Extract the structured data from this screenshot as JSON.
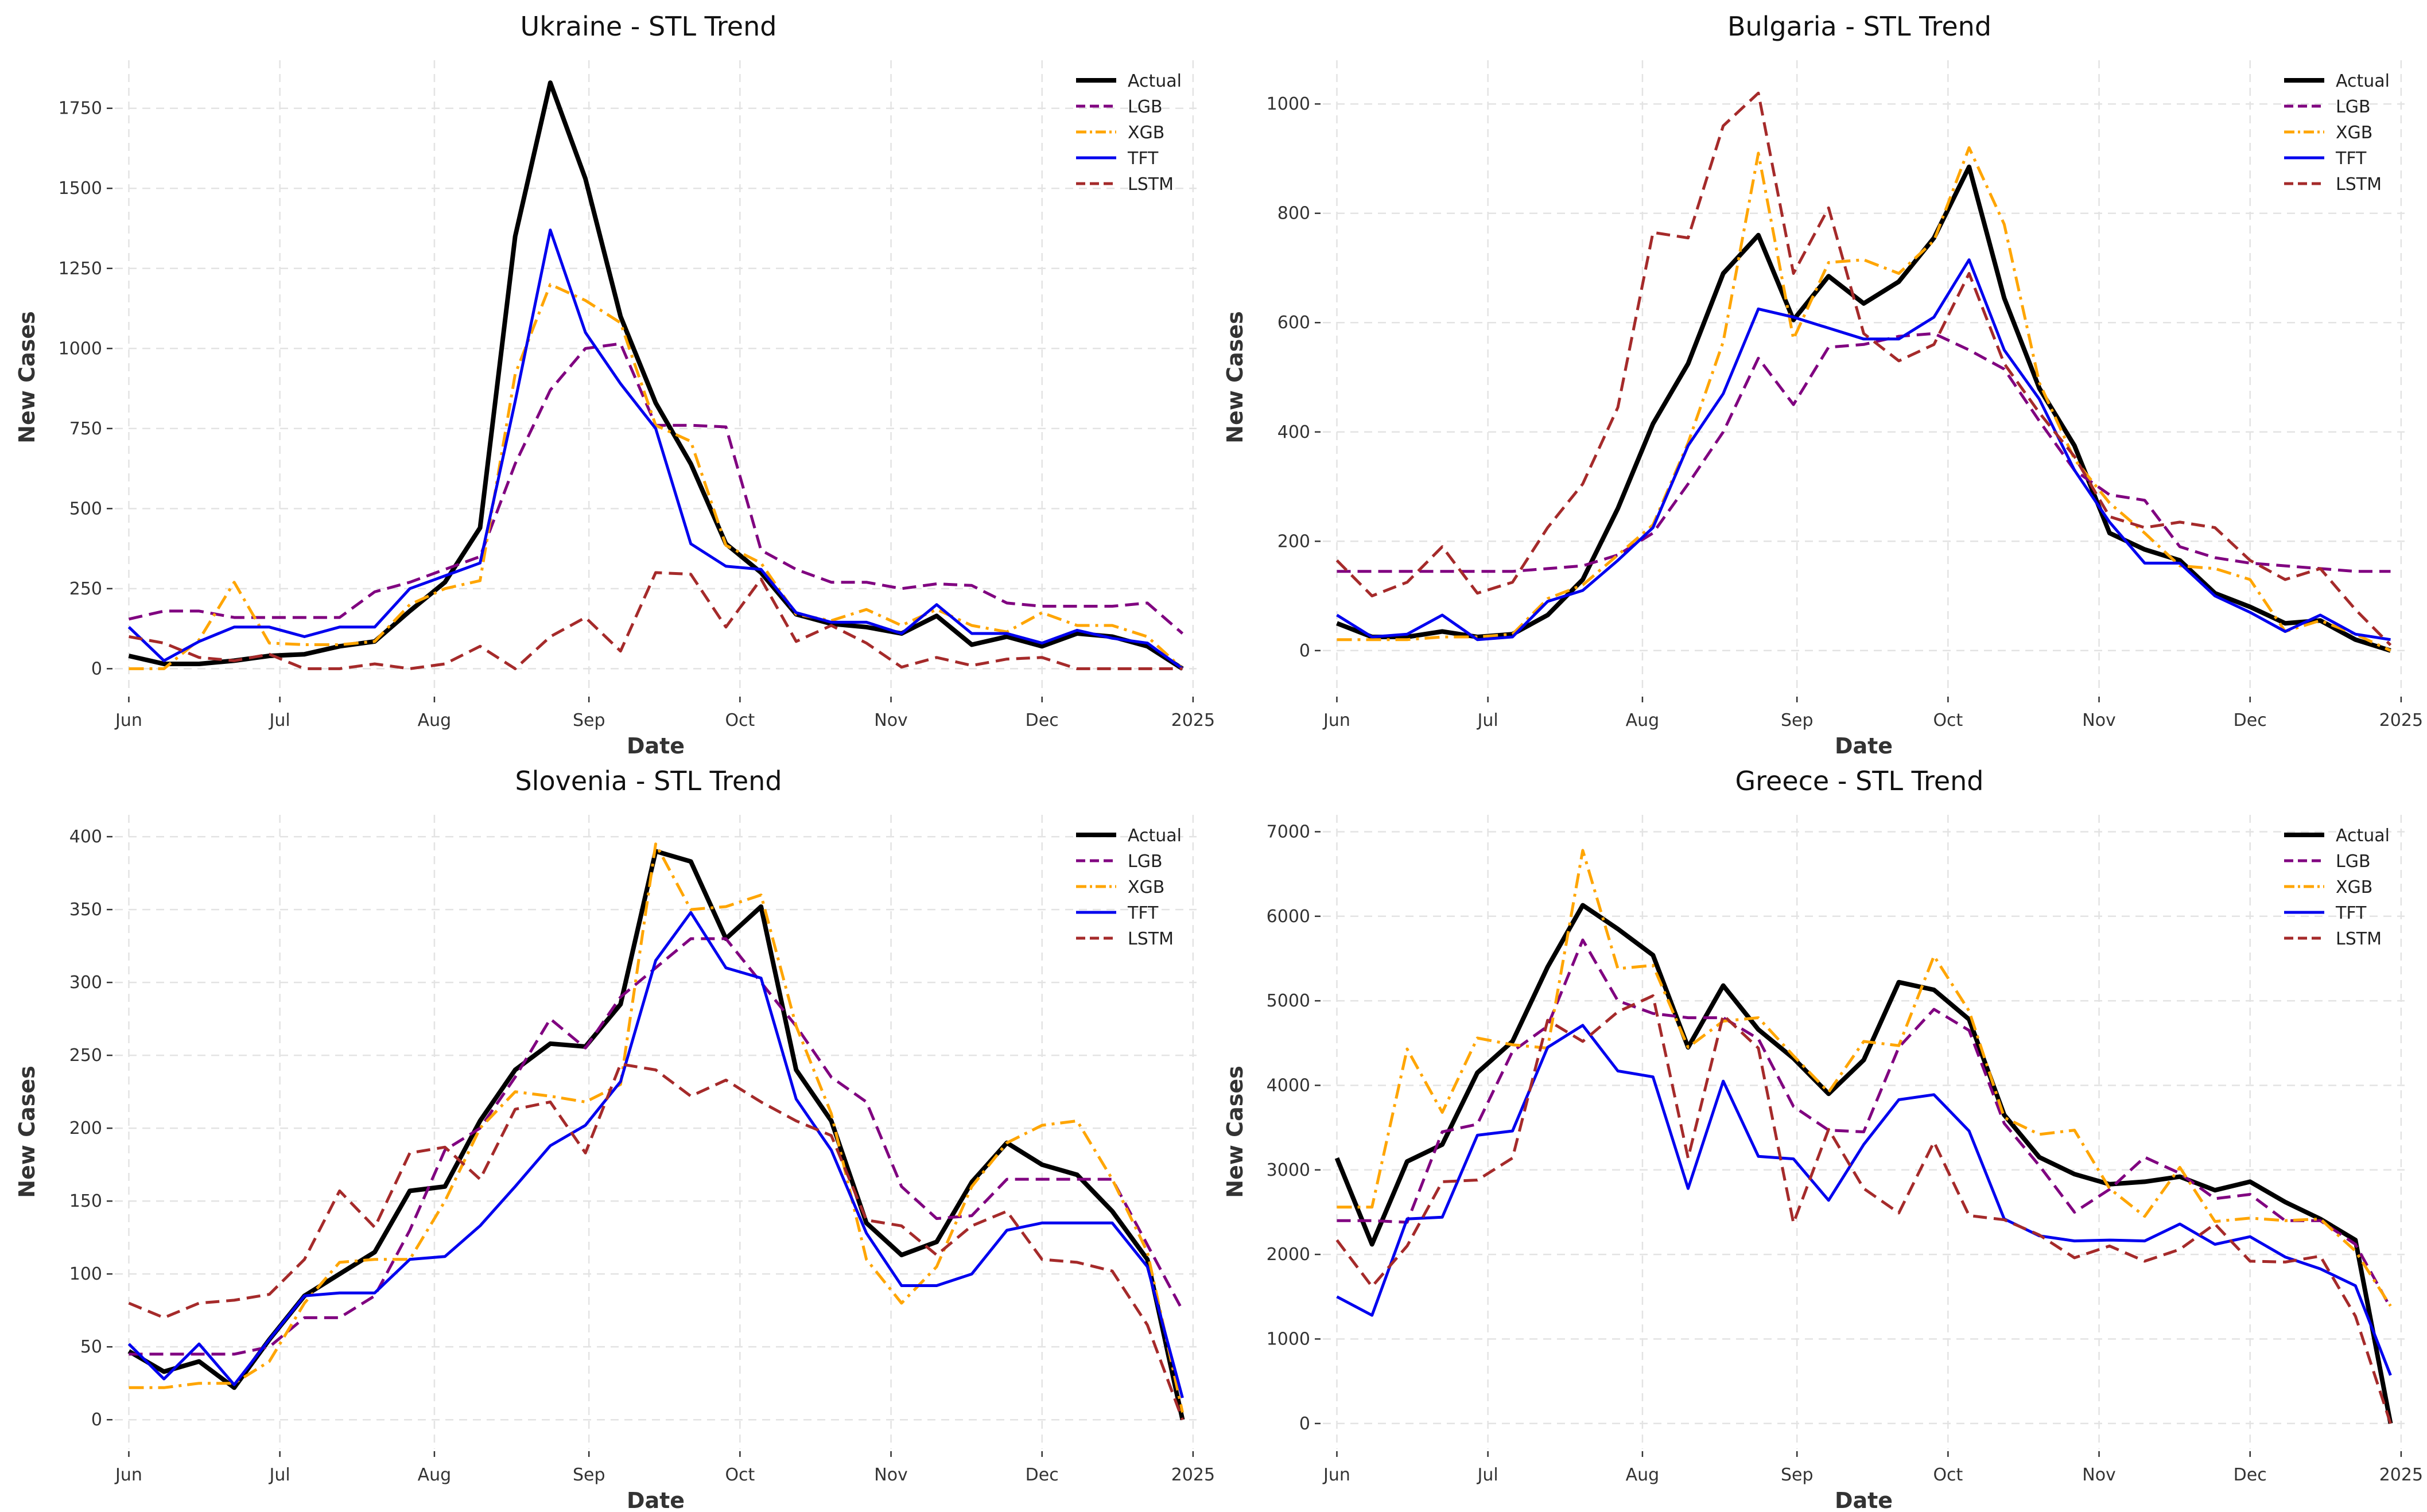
{
  "colors": {
    "Actual": "#000000",
    "LGB": "#800080",
    "XGB": "#FFA500",
    "TFT": "#0000EE",
    "LSTM": "#A52A2A"
  },
  "chart_data": [
    {
      "type": "line",
      "title": "Ukraine - STL Trend",
      "xlabel": "Date",
      "ylabel": "New Cases",
      "ylim": [
        -80,
        1900
      ],
      "yticks": [
        0,
        250,
        500,
        750,
        1000,
        1250,
        1500,
        1750
      ],
      "ytick_labels": [
        "0",
        "250",
        "500",
        "750",
        "1000",
        "1250",
        "1500",
        "1750"
      ],
      "xlim": [
        -0.4,
        30.4
      ],
      "xtick_pos": [
        0,
        4.3,
        8.7,
        13.1,
        17.4,
        21.7,
        26,
        30.3
      ],
      "xtick_labels": [
        "Jun",
        "Jul",
        "Aug",
        "Sep",
        "Oct",
        "Nov",
        "Dec",
        "2025"
      ],
      "grid": true,
      "legend": "top-right",
      "series": [
        {
          "name": "Actual",
          "style": "solid",
          "width": 8,
          "values": [
            40,
            15,
            15,
            25,
            40,
            45,
            70,
            85,
            180,
            270,
            440,
            1350,
            1830,
            1530,
            1100,
            830,
            640,
            390,
            300,
            170,
            140,
            130,
            110,
            165,
            75,
            100,
            70,
            110,
            100,
            70,
            0
          ]
        },
        {
          "name": "LGB",
          "style": "dashed",
          "width": 5,
          "values": [
            155,
            180,
            180,
            160,
            160,
            160,
            160,
            240,
            270,
            310,
            350,
            640,
            870,
            1000,
            1015,
            760,
            760,
            755,
            370,
            310,
            270,
            270,
            250,
            265,
            260,
            205,
            195,
            195,
            195,
            205,
            110
          ]
        },
        {
          "name": "XGB",
          "style": "dashdot",
          "width": 5,
          "values": [
            0,
            0,
            90,
            270,
            80,
            75,
            75,
            85,
            200,
            250,
            275,
            920,
            1200,
            1150,
            1080,
            760,
            710,
            385,
            330,
            170,
            150,
            185,
            135,
            185,
            135,
            115,
            175,
            135,
            135,
            100,
            0
          ]
        },
        {
          "name": "TFT",
          "style": "solid",
          "width": 5,
          "values": [
            130,
            25,
            85,
            130,
            130,
            100,
            130,
            130,
            250,
            290,
            330,
            835,
            1370,
            1050,
            890,
            750,
            390,
            320,
            310,
            175,
            145,
            145,
            110,
            200,
            110,
            110,
            80,
            120,
            95,
            80,
            0
          ]
        },
        {
          "name": "LSTM",
          "style": "dashed",
          "width": 5,
          "values": [
            100,
            80,
            35,
            25,
            45,
            0,
            0,
            15,
            0,
            15,
            70,
            0,
            100,
            160,
            55,
            300,
            295,
            130,
            280,
            85,
            135,
            80,
            5,
            35,
            10,
            30,
            35,
            0,
            0,
            0,
            0
          ]
        }
      ]
    },
    {
      "type": "line",
      "title": "Bulgaria - STL Trend",
      "xlabel": "Date",
      "ylabel": "New Cases",
      "ylim": [
        -80,
        1080
      ],
      "yticks": [
        0,
        200,
        400,
        600,
        800,
        1000
      ],
      "ytick_labels": [
        "0",
        "200",
        "400",
        "600",
        "800",
        "1000"
      ],
      "xlim": [
        -0.4,
        30.4
      ],
      "xtick_pos": [
        0,
        4.3,
        8.7,
        13.1,
        17.4,
        21.7,
        26,
        30.3
      ],
      "xtick_labels": [
        "Jun",
        "Jul",
        "Aug",
        "Sep",
        "Oct",
        "Nov",
        "Dec",
        "2025"
      ],
      "grid": true,
      "legend": "top-right",
      "series": [
        {
          "name": "Actual",
          "style": "solid",
          "width": 8,
          "values": [
            50,
            25,
            25,
            35,
            25,
            30,
            65,
            130,
            260,
            415,
            525,
            690,
            760,
            605,
            685,
            635,
            675,
            755,
            885,
            645,
            480,
            375,
            215,
            185,
            165,
            105,
            80,
            50,
            55,
            20,
            0
          ]
        },
        {
          "name": "LGB",
          "style": "dashed",
          "width": 5,
          "values": [
            145,
            145,
            145,
            145,
            145,
            145,
            150,
            155,
            175,
            215,
            305,
            400,
            535,
            450,
            555,
            560,
            575,
            580,
            550,
            515,
            420,
            330,
            285,
            275,
            190,
            170,
            160,
            155,
            150,
            145,
            145
          ]
        },
        {
          "name": "XGB",
          "style": "dashdot",
          "width": 5,
          "values": [
            20,
            20,
            20,
            25,
            25,
            30,
            95,
            120,
            175,
            230,
            380,
            565,
            910,
            570,
            710,
            715,
            690,
            750,
            920,
            780,
            490,
            350,
            270,
            215,
            155,
            150,
            130,
            35,
            55,
            30,
            0
          ]
        },
        {
          "name": "TFT",
          "style": "solid",
          "width": 5,
          "values": [
            65,
            25,
            30,
            65,
            20,
            25,
            90,
            110,
            165,
            225,
            375,
            470,
            625,
            610,
            590,
            570,
            570,
            610,
            715,
            550,
            460,
            330,
            235,
            160,
            160,
            100,
            70,
            35,
            65,
            30,
            20
          ]
        },
        {
          "name": "LSTM",
          "style": "dashed",
          "width": 5,
          "values": [
            165,
            100,
            125,
            190,
            105,
            125,
            225,
            305,
            445,
            765,
            755,
            960,
            1020,
            690,
            810,
            580,
            530,
            560,
            690,
            525,
            435,
            355,
            245,
            225,
            235,
            225,
            165,
            130,
            150,
            75,
            10
          ]
        }
      ]
    },
    {
      "type": "line",
      "title": "Slovenia - STL Trend",
      "xlabel": "Date",
      "ylabel": "New Cases",
      "ylim": [
        -20,
        415
      ],
      "yticks": [
        0,
        50,
        100,
        150,
        200,
        250,
        300,
        350,
        400
      ],
      "ytick_labels": [
        "0",
        "50",
        "100",
        "150",
        "200",
        "250",
        "300",
        "350",
        "400"
      ],
      "xlim": [
        -0.4,
        30.4
      ],
      "xtick_pos": [
        0,
        4.3,
        8.7,
        13.1,
        17.4,
        21.7,
        26,
        30.3
      ],
      "xtick_labels": [
        "Jun",
        "Jul",
        "Aug",
        "Sep",
        "Oct",
        "Nov",
        "Dec",
        "2025"
      ],
      "grid": true,
      "legend": "top-right",
      "series": [
        {
          "name": "Actual",
          "style": "solid",
          "width": 8,
          "values": [
            47,
            33,
            40,
            22,
            55,
            85,
            100,
            115,
            157,
            160,
            205,
            240,
            258,
            256,
            285,
            390,
            383,
            330,
            352,
            240,
            205,
            135,
            113,
            122,
            163,
            190,
            175,
            168,
            143,
            110,
            0
          ]
        },
        {
          "name": "LGB",
          "style": "dashed",
          "width": 5,
          "values": [
            45,
            45,
            45,
            45,
            50,
            70,
            70,
            85,
            130,
            185,
            200,
            235,
            275,
            255,
            290,
            310,
            330,
            330,
            300,
            270,
            235,
            218,
            160,
            138,
            140,
            165,
            165,
            165,
            165,
            120,
            75
          ]
        },
        {
          "name": "XGB",
          "style": "dashdot",
          "width": 5,
          "values": [
            22,
            22,
            25,
            25,
            40,
            80,
            108,
            110,
            110,
            150,
            200,
            225,
            222,
            218,
            230,
            395,
            350,
            352,
            360,
            270,
            210,
            110,
            80,
            105,
            160,
            190,
            202,
            205,
            165,
            115,
            5
          ]
        },
        {
          "name": "TFT",
          "style": "solid",
          "width": 5,
          "values": [
            52,
            28,
            52,
            24,
            55,
            85,
            87,
            87,
            110,
            112,
            133,
            160,
            188,
            202,
            232,
            315,
            348,
            310,
            303,
            220,
            185,
            128,
            92,
            92,
            100,
            130,
            135,
            135,
            135,
            105,
            15
          ]
        },
        {
          "name": "LSTM",
          "style": "dashed",
          "width": 5,
          "values": [
            80,
            70,
            80,
            82,
            86,
            110,
            157,
            132,
            183,
            187,
            165,
            213,
            218,
            183,
            244,
            240,
            222,
            233,
            218,
            205,
            195,
            137,
            133,
            113,
            133,
            143,
            110,
            108,
            102,
            65,
            0
          ]
        }
      ]
    },
    {
      "type": "line",
      "title": "Greece - STL Trend",
      "xlabel": "Date",
      "ylabel": "New Cases",
      "ylim": [
        -300,
        7200
      ],
      "yticks": [
        0,
        1000,
        2000,
        3000,
        4000,
        5000,
        6000,
        7000
      ],
      "ytick_labels": [
        "0",
        "1000",
        "2000",
        "3000",
        "4000",
        "5000",
        "6000",
        "7000"
      ],
      "xlim": [
        -0.4,
        30.4
      ],
      "xtick_pos": [
        0,
        4.3,
        8.7,
        13.1,
        17.4,
        21.7,
        26,
        30.3
      ],
      "xtick_labels": [
        "Jun",
        "Jul",
        "Aug",
        "Sep",
        "Oct",
        "Nov",
        "Dec",
        "2025"
      ],
      "grid": true,
      "legend": "top-right",
      "series": [
        {
          "name": "Actual",
          "style": "solid",
          "width": 8,
          "values": [
            3140,
            2120,
            3100,
            3300,
            4150,
            4520,
            5400,
            6130,
            5850,
            5540,
            4450,
            5180,
            4660,
            4320,
            3900,
            4300,
            5220,
            5130,
            4780,
            3650,
            3150,
            2950,
            2830,
            2860,
            2920,
            2760,
            2860,
            2620,
            2420,
            2170,
            0
          ]
        },
        {
          "name": "LGB",
          "style": "dashed",
          "width": 5,
          "values": [
            2400,
            2400,
            2380,
            3450,
            3540,
            4400,
            4700,
            5720,
            5000,
            4850,
            4800,
            4800,
            4550,
            3750,
            3470,
            3450,
            4450,
            4900,
            4650,
            3550,
            3050,
            2500,
            2770,
            3150,
            2960,
            2660,
            2710,
            2400,
            2400,
            2120,
            1370
          ]
        },
        {
          "name": "XGB",
          "style": "dashdot",
          "width": 5,
          "values": [
            2560,
            2560,
            4430,
            3680,
            4560,
            4480,
            4440,
            6780,
            5380,
            5420,
            4450,
            4760,
            4800,
            4350,
            3920,
            4520,
            4470,
            5530,
            4880,
            3620,
            3420,
            3470,
            2780,
            2450,
            3030,
            2390,
            2430,
            2400,
            2420,
            2040,
            1390
          ]
        },
        {
          "name": "TFT",
          "style": "solid",
          "width": 5,
          "values": [
            1500,
            1280,
            2420,
            2440,
            3410,
            3460,
            4450,
            4710,
            4170,
            4100,
            2780,
            4050,
            3160,
            3130,
            2640,
            3300,
            3830,
            3890,
            3460,
            2420,
            2220,
            2160,
            2170,
            2160,
            2360,
            2120,
            2210,
            1970,
            1830,
            1630,
            570
          ]
        },
        {
          "name": "LSTM",
          "style": "dashed",
          "width": 5,
          "values": [
            2170,
            1620,
            2100,
            2860,
            2880,
            3140,
            4770,
            4520,
            4870,
            5060,
            3140,
            4830,
            4440,
            2370,
            3480,
            2780,
            2490,
            3330,
            2460,
            2410,
            2230,
            1960,
            2100,
            1920,
            2060,
            2360,
            1920,
            1910,
            1980,
            1270,
            0
          ]
        }
      ]
    }
  ]
}
